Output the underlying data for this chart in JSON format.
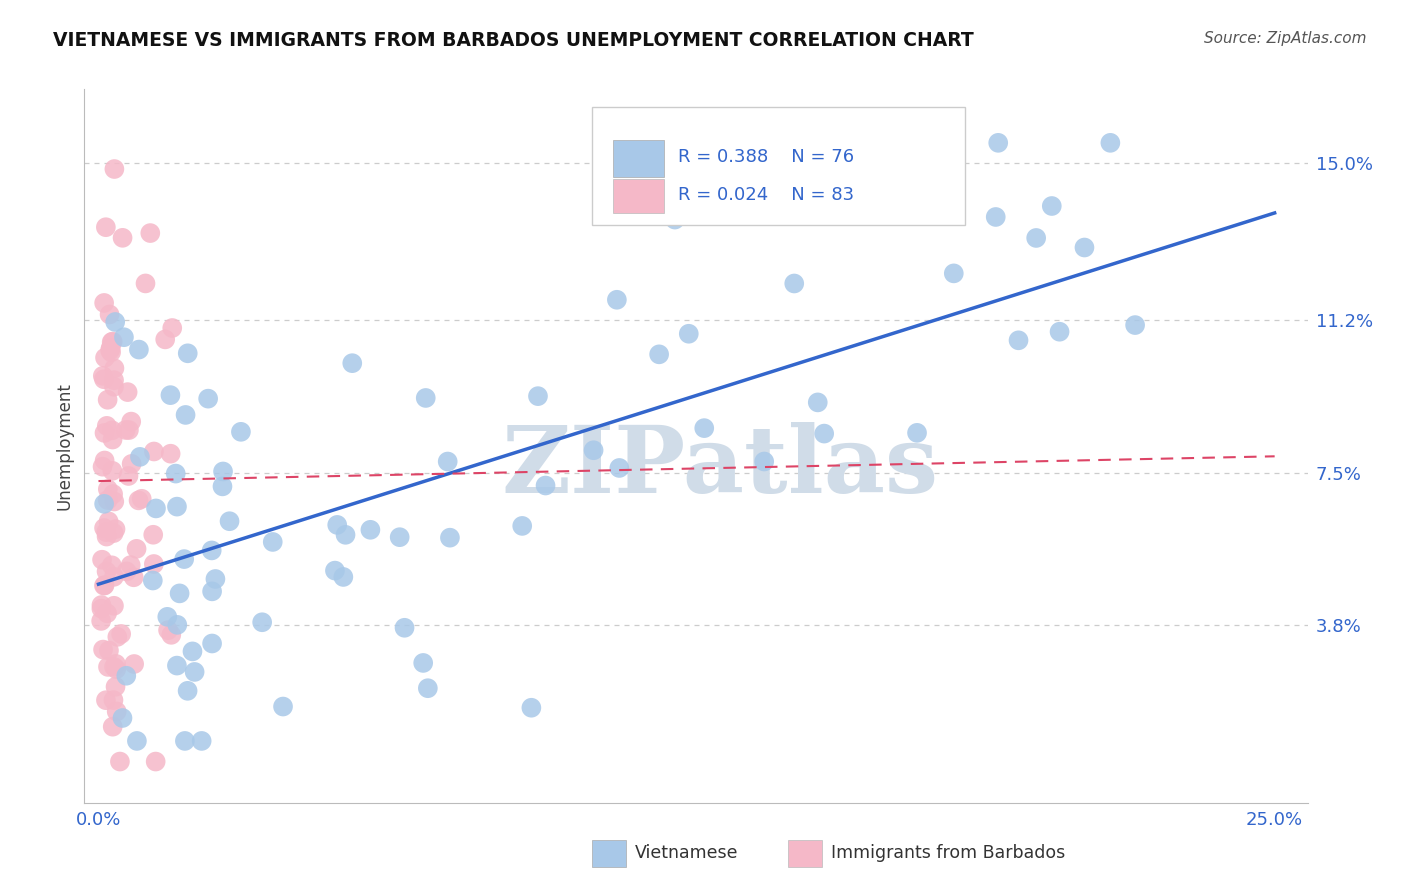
{
  "title": "VIETNAMESE VS IMMIGRANTS FROM BARBADOS UNEMPLOYMENT CORRELATION CHART",
  "source": "Source: ZipAtlas.com",
  "ylabel": "Unemployment",
  "ytick_values": [
    0.038,
    0.075,
    0.112,
    0.15
  ],
  "ytick_labels": [
    "3.8%",
    "7.5%",
    "11.2%",
    "15.0%"
  ],
  "xlim": [
    0.0,
    0.25
  ],
  "ylim": [
    0.0,
    0.165
  ],
  "legend_blue_r": "R = 0.388",
  "legend_blue_n": "N = 76",
  "legend_pink_r": "R = 0.024",
  "legend_pink_n": "N = 83",
  "legend_label_blue": "Vietnamese",
  "legend_label_pink": "Immigrants from Barbados",
  "blue_color": "#a8c8e8",
  "pink_color": "#f5b8c8",
  "trendline_blue_color": "#3366cc",
  "trendline_pink_color": "#dd4466",
  "r_n_color": "#3366cc",
  "background_color": "#ffffff",
  "watermark_text": "ZIPatlas",
  "watermark_color": "#d0dce8",
  "blue_trendline": [
    0.0,
    0.25,
    0.048,
    0.138
  ],
  "pink_trendline": [
    0.0,
    0.25,
    0.073,
    0.079
  ]
}
